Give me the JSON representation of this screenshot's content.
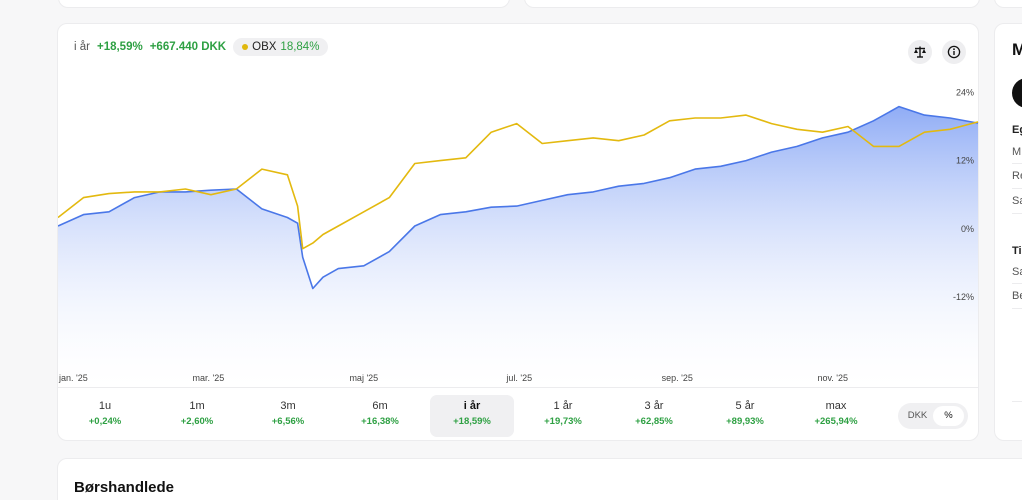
{
  "legend": {
    "label": "i år",
    "pct": "+18,59%",
    "amount": "+667.440 DKK",
    "benchmark_name": "OBX",
    "benchmark_value": "18,84%"
  },
  "icons": {
    "compare": "scale-icon",
    "info": "info-icon"
  },
  "colors": {
    "portfolio": "#4a77e8",
    "benchmark": "#e3b90f",
    "positive": "#2ea043"
  },
  "chart_data": {
    "type": "line",
    "ylim": [
      -25,
      26
    ],
    "yticks": [
      24,
      12,
      0,
      -12
    ],
    "ytick_labels": [
      "24%",
      "12%",
      "0%",
      "-12%"
    ],
    "xlim": [
      0,
      361
    ],
    "xticks": [
      {
        "day": 0,
        "label": "jan. '25"
      },
      {
        "day": 59,
        "label": "mar. '25"
      },
      {
        "day": 120,
        "label": "maj '25"
      },
      {
        "day": 181,
        "label": "jul. '25"
      },
      {
        "day": 243,
        "label": "sep. '25"
      },
      {
        "day": 304,
        "label": "nov. '25"
      }
    ],
    "grid": false,
    "legend": "top-left",
    "series": [
      {
        "name": "",
        "style": "area",
        "x": [
          0,
          10,
          20,
          30,
          40,
          50,
          60,
          70,
          80,
          90,
          94,
          96,
          100,
          104,
          110,
          120,
          130,
          140,
          150,
          160,
          170,
          180,
          190,
          200,
          210,
          220,
          230,
          240,
          250,
          260,
          270,
          280,
          290,
          300,
          310,
          320,
          330,
          340,
          350,
          361
        ],
        "y": [
          0.5,
          2.5,
          3,
          5.5,
          6.5,
          6.5,
          6.8,
          7,
          3.5,
          2,
          1,
          -5,
          -10.5,
          -8.5,
          -7,
          -6.5,
          -4,
          0.5,
          2.5,
          3,
          3.8,
          4,
          5,
          6,
          6.5,
          7.5,
          8,
          9,
          10.5,
          11,
          12,
          13.5,
          14.5,
          16,
          17,
          19,
          21.5,
          20,
          19.5,
          18.6
        ]
      },
      {
        "name": "OBX",
        "style": "line",
        "x": [
          0,
          10,
          20,
          30,
          40,
          50,
          60,
          70,
          80,
          90,
          94,
          96,
          100,
          104,
          110,
          120,
          130,
          140,
          150,
          160,
          170,
          180,
          190,
          200,
          210,
          220,
          230,
          240,
          250,
          260,
          270,
          280,
          290,
          300,
          310,
          320,
          330,
          340,
          350,
          361
        ],
        "y": [
          2,
          5.5,
          6.2,
          6.5,
          6.5,
          7,
          6,
          7,
          10.5,
          9.5,
          4,
          -3.5,
          -2.5,
          -1,
          0.5,
          3,
          5.5,
          11.5,
          12,
          12.5,
          17,
          18.5,
          15,
          15.5,
          16,
          15.5,
          16.5,
          19,
          19.5,
          19.5,
          20,
          18.5,
          17.5,
          17,
          18,
          14.5,
          14.5,
          17,
          17.5,
          18.8
        ]
      }
    ]
  },
  "periods": [
    {
      "label": "1u",
      "value": "+0,24%"
    },
    {
      "label": "1m",
      "value": "+2,60%"
    },
    {
      "label": "3m",
      "value": "+6,56%"
    },
    {
      "label": "6m",
      "value": "+16,38%"
    },
    {
      "label": "i år",
      "value": "+18,59%",
      "active": true
    },
    {
      "label": "1 år",
      "value": "+19,73%"
    },
    {
      "label": "3 år",
      "value": "+62,85%"
    },
    {
      "label": "5 år",
      "value": "+89,93%"
    },
    {
      "label": "max",
      "value": "+265,94%"
    }
  ],
  "toggle": {
    "option_a": "DKK",
    "option_b": "%",
    "selected": "%"
  },
  "side_panel": {
    "title": "M",
    "section1_head": "Eg",
    "section1_rows": [
      "M",
      "Re",
      "Sa"
    ],
    "section2_head": "Ti",
    "section2_rows": [
      "Sa",
      "Be"
    ]
  },
  "trades": {
    "title": "Børshandlede"
  }
}
